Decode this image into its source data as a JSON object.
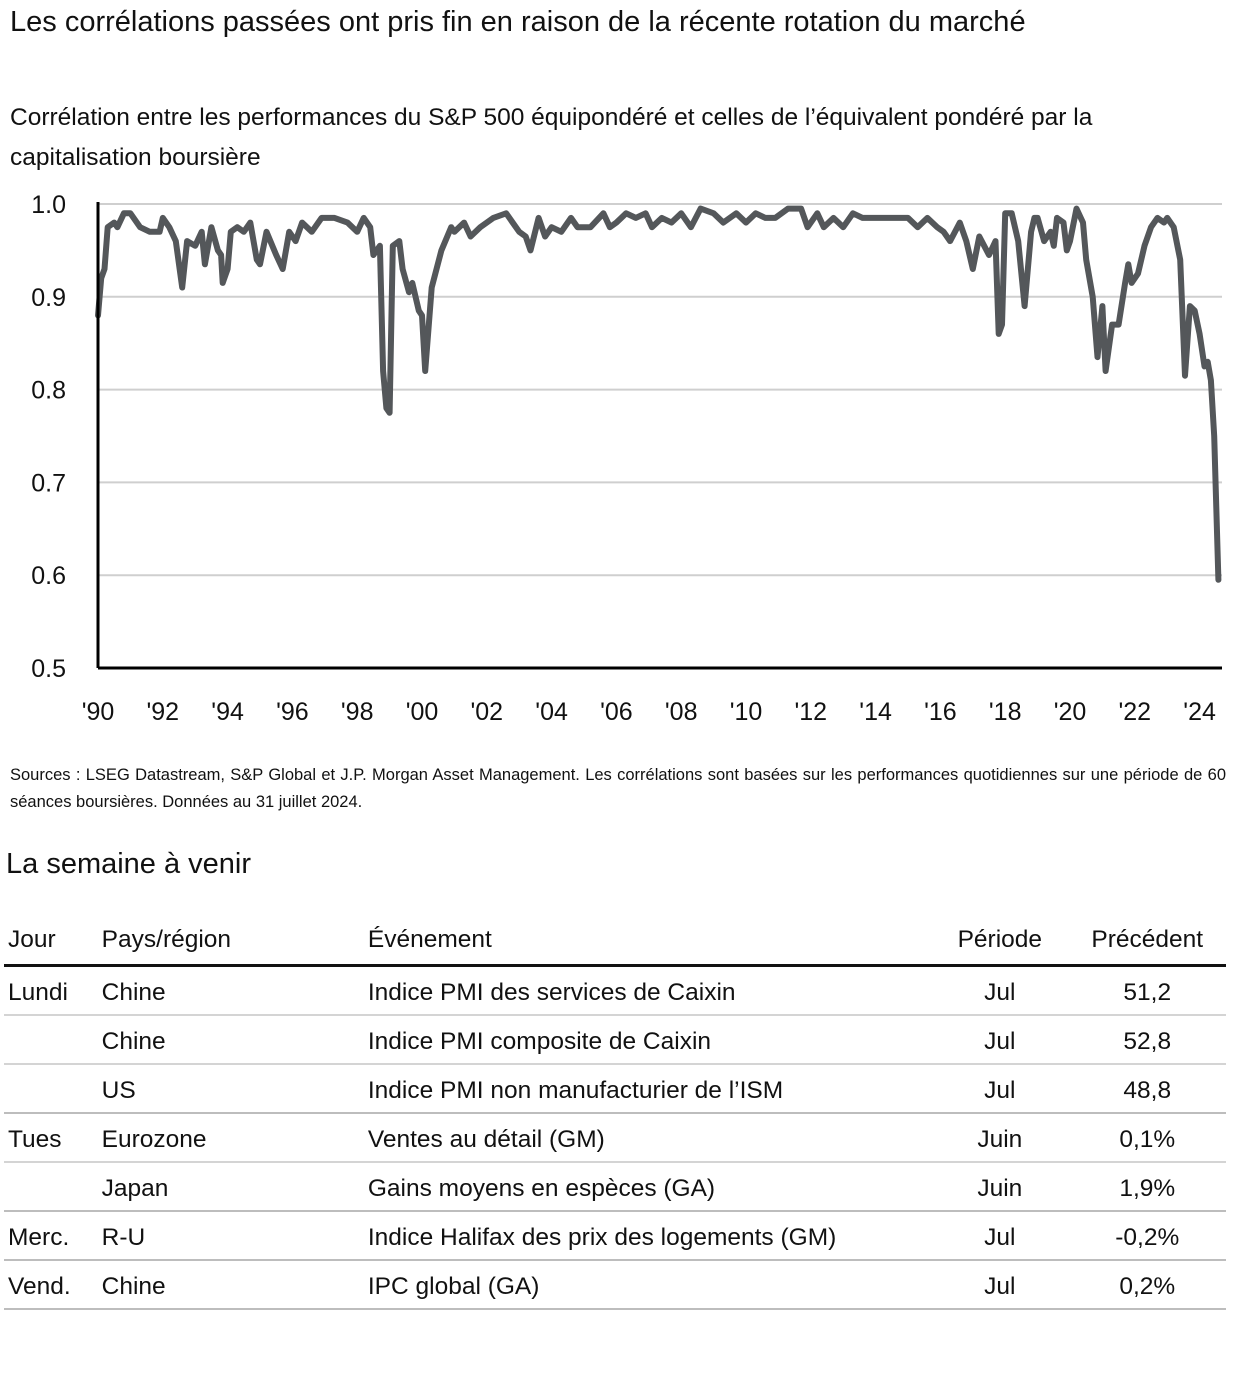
{
  "title": "Les corrélations passées ont pris fin en raison de la récente rotation du marché",
  "subtitle": "Corrélation entre les performances du S&P 500 équipondéré et celles de l’équivalent pondéré par la capitalisation boursière",
  "sources": "Sources : LSEG Datastream, S&P Global et J.P. Morgan Asset Management. Les corrélations sont basées sur les performances quotidiennes sur une période de 60 séances boursières. Données au 31 juillet 2024.",
  "chart_data": {
    "type": "line",
    "title": "",
    "xlabel": "",
    "ylabel": "",
    "xlim": [
      1990,
      2024.7
    ],
    "ylim": [
      0.5,
      1.0
    ],
    "grid": true,
    "line_color": "#54575a",
    "y_ticks": [
      "1.0",
      "0.9",
      "0.8",
      "0.7",
      "0.6",
      "0.5"
    ],
    "x_ticks": [
      "'90",
      "'92",
      "'94",
      "'96",
      "'98",
      "'00",
      "'02",
      "'04",
      "'06",
      "'08",
      "'10",
      "'12",
      "'14",
      "'16",
      "'18",
      "'20",
      "'22",
      "'24"
    ],
    "series": [
      {
        "points": [
          [
            1990.0,
            0.88
          ],
          [
            1990.1,
            0.92
          ],
          [
            1990.2,
            0.93
          ],
          [
            1990.3,
            0.975
          ],
          [
            1990.5,
            0.98
          ],
          [
            1990.6,
            0.975
          ],
          [
            1990.8,
            0.99
          ],
          [
            1991.0,
            0.99
          ],
          [
            1991.3,
            0.975
          ],
          [
            1991.6,
            0.97
          ],
          [
            1991.9,
            0.97
          ],
          [
            1992.0,
            0.985
          ],
          [
            1992.2,
            0.975
          ],
          [
            1992.4,
            0.96
          ],
          [
            1992.5,
            0.935
          ],
          [
            1992.6,
            0.91
          ],
          [
            1992.75,
            0.96
          ],
          [
            1993.0,
            0.955
          ],
          [
            1993.2,
            0.97
          ],
          [
            1993.3,
            0.935
          ],
          [
            1993.5,
            0.975
          ],
          [
            1993.7,
            0.95
          ],
          [
            1993.8,
            0.945
          ],
          [
            1993.85,
            0.915
          ],
          [
            1994.0,
            0.93
          ],
          [
            1994.1,
            0.97
          ],
          [
            1994.3,
            0.975
          ],
          [
            1994.5,
            0.97
          ],
          [
            1994.7,
            0.98
          ],
          [
            1994.9,
            0.94
          ],
          [
            1995.0,
            0.935
          ],
          [
            1995.2,
            0.97
          ],
          [
            1995.5,
            0.945
          ],
          [
            1995.7,
            0.93
          ],
          [
            1995.9,
            0.97
          ],
          [
            1996.1,
            0.96
          ],
          [
            1996.3,
            0.98
          ],
          [
            1996.6,
            0.97
          ],
          [
            1996.9,
            0.985
          ],
          [
            1997.3,
            0.985
          ],
          [
            1997.7,
            0.98
          ],
          [
            1998.0,
            0.97
          ],
          [
            1998.2,
            0.985
          ],
          [
            1998.4,
            0.975
          ],
          [
            1998.5,
            0.945
          ],
          [
            1998.7,
            0.955
          ],
          [
            1998.8,
            0.82
          ],
          [
            1998.9,
            0.78
          ],
          [
            1999.0,
            0.775
          ],
          [
            1999.1,
            0.955
          ],
          [
            1999.3,
            0.96
          ],
          [
            1999.4,
            0.93
          ],
          [
            1999.6,
            0.905
          ],
          [
            1999.7,
            0.915
          ],
          [
            1999.9,
            0.885
          ],
          [
            2000.0,
            0.88
          ],
          [
            2000.1,
            0.82
          ],
          [
            2000.3,
            0.91
          ],
          [
            2000.6,
            0.95
          ],
          [
            2000.9,
            0.975
          ],
          [
            2001.0,
            0.97
          ],
          [
            2001.3,
            0.98
          ],
          [
            2001.5,
            0.965
          ],
          [
            2001.8,
            0.975
          ],
          [
            2002.0,
            0.98
          ],
          [
            2002.2,
            0.985
          ],
          [
            2002.6,
            0.99
          ],
          [
            2002.8,
            0.98
          ],
          [
            2003.0,
            0.97
          ],
          [
            2003.2,
            0.965
          ],
          [
            2003.35,
            0.95
          ],
          [
            2003.6,
            0.985
          ],
          [
            2003.8,
            0.965
          ],
          [
            2004.0,
            0.975
          ],
          [
            2004.3,
            0.97
          ],
          [
            2004.6,
            0.985
          ],
          [
            2004.8,
            0.975
          ],
          [
            2005.2,
            0.975
          ],
          [
            2005.6,
            0.99
          ],
          [
            2005.8,
            0.975
          ],
          [
            2006.0,
            0.98
          ],
          [
            2006.3,
            0.99
          ],
          [
            2006.6,
            0.985
          ],
          [
            2006.9,
            0.99
          ],
          [
            2007.1,
            0.975
          ],
          [
            2007.4,
            0.985
          ],
          [
            2007.7,
            0.98
          ],
          [
            2008.0,
            0.99
          ],
          [
            2008.3,
            0.975
          ],
          [
            2008.6,
            0.995
          ],
          [
            2009.0,
            0.99
          ],
          [
            2009.3,
            0.98
          ],
          [
            2009.7,
            0.99
          ],
          [
            2010.0,
            0.98
          ],
          [
            2010.3,
            0.99
          ],
          [
            2010.6,
            0.985
          ],
          [
            2010.9,
            0.985
          ],
          [
            2011.3,
            0.995
          ],
          [
            2011.7,
            0.995
          ],
          [
            2011.9,
            0.975
          ],
          [
            2012.2,
            0.99
          ],
          [
            2012.4,
            0.975
          ],
          [
            2012.7,
            0.985
          ],
          [
            2013.0,
            0.975
          ],
          [
            2013.3,
            0.99
          ],
          [
            2013.6,
            0.985
          ],
          [
            2014.0,
            0.985
          ],
          [
            2014.5,
            0.985
          ],
          [
            2015.0,
            0.985
          ],
          [
            2015.3,
            0.975
          ],
          [
            2015.6,
            0.985
          ],
          [
            2015.9,
            0.975
          ],
          [
            2016.1,
            0.97
          ],
          [
            2016.3,
            0.96
          ],
          [
            2016.6,
            0.98
          ],
          [
            2016.8,
            0.96
          ],
          [
            2017.0,
            0.93
          ],
          [
            2017.2,
            0.965
          ],
          [
            2017.5,
            0.945
          ],
          [
            2017.7,
            0.96
          ],
          [
            2017.8,
            0.86
          ],
          [
            2017.9,
            0.87
          ],
          [
            2018.0,
            0.99
          ],
          [
            2018.2,
            0.99
          ],
          [
            2018.4,
            0.96
          ],
          [
            2018.6,
            0.89
          ],
          [
            2018.8,
            0.97
          ],
          [
            2018.9,
            0.985
          ],
          [
            2019.0,
            0.985
          ],
          [
            2019.2,
            0.96
          ],
          [
            2019.4,
            0.97
          ],
          [
            2019.5,
            0.955
          ],
          [
            2019.6,
            0.985
          ],
          [
            2019.8,
            0.98
          ],
          [
            2019.9,
            0.95
          ],
          [
            2020.0,
            0.96
          ],
          [
            2020.2,
            0.995
          ],
          [
            2020.4,
            0.98
          ],
          [
            2020.5,
            0.94
          ],
          [
            2020.7,
            0.9
          ],
          [
            2020.85,
            0.835
          ],
          [
            2021.0,
            0.89
          ],
          [
            2021.1,
            0.82
          ],
          [
            2021.3,
            0.87
          ],
          [
            2021.5,
            0.87
          ],
          [
            2021.7,
            0.915
          ],
          [
            2021.8,
            0.935
          ],
          [
            2021.9,
            0.915
          ],
          [
            2022.1,
            0.925
          ],
          [
            2022.3,
            0.955
          ],
          [
            2022.5,
            0.975
          ],
          [
            2022.7,
            0.985
          ],
          [
            2022.9,
            0.98
          ],
          [
            2023.0,
            0.985
          ],
          [
            2023.2,
            0.975
          ],
          [
            2023.4,
            0.94
          ],
          [
            2023.55,
            0.815
          ],
          [
            2023.7,
            0.89
          ],
          [
            2023.85,
            0.885
          ],
          [
            2024.0,
            0.86
          ],
          [
            2024.15,
            0.825
          ],
          [
            2024.25,
            0.83
          ],
          [
            2024.35,
            0.81
          ],
          [
            2024.45,
            0.75
          ],
          [
            2024.58,
            0.595
          ]
        ]
      }
    ]
  },
  "week": {
    "title": "La semaine à venir",
    "headers": [
      "Jour",
      "Pays/région",
      "Événement",
      "Période",
      "Précédent"
    ],
    "rows": [
      {
        "day": "Lundi",
        "country": "Chine",
        "event": "Indice PMI des services de Caixin",
        "period": "Jul",
        "previous": "51,2"
      },
      {
        "day": "",
        "country": "Chine",
        "event": "Indice PMI composite de Caixin",
        "period": "Jul",
        "previous": "52,8"
      },
      {
        "day": "",
        "country": "US",
        "event": "Indice PMI non manufacturier de l’ISM",
        "period": "Jul",
        "previous": "48,8"
      },
      {
        "day": "Tues",
        "country": "Eurozone",
        "event": "Ventes au détail (GM)",
        "period": "Juin",
        "previous": "0,1%"
      },
      {
        "day": "",
        "country": "Japan",
        "event": "Gains moyens en espèces (GA)",
        "period": "Juin",
        "previous": "1,9%"
      },
      {
        "day": "Merc.",
        "country": "R-U",
        "event": "Indice Halifax des prix des logements (GM)",
        "period": "Jul",
        "previous": "-0,2%"
      },
      {
        "day": "Vend.",
        "country": "Chine",
        "event": "IPC global (GA)",
        "period": "Jul",
        "previous": "0,2%"
      }
    ]
  }
}
